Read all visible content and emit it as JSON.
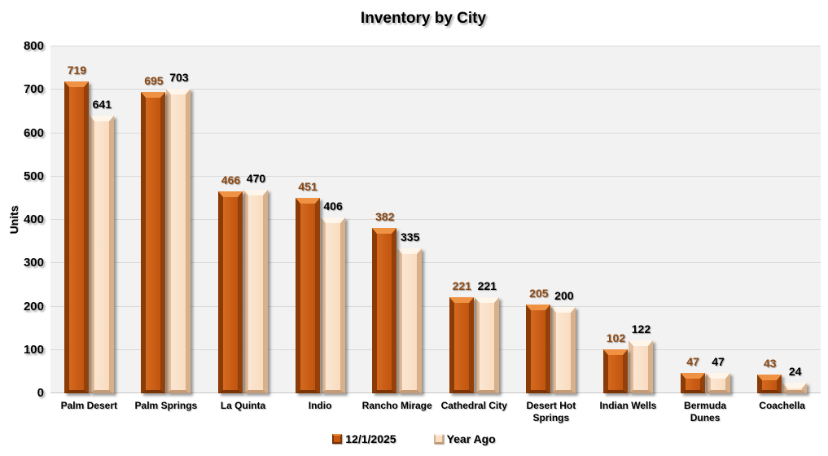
{
  "title": "Inventory by City",
  "y_axis": {
    "label": "Units",
    "ticks": [
      0,
      100,
      200,
      300,
      400,
      500,
      600,
      700,
      800
    ],
    "max": 800
  },
  "chart_data": {
    "type": "bar",
    "title": "Inventory by City",
    "xlabel": "",
    "ylabel": "Units",
    "ylim": [
      0,
      800
    ],
    "grid": true,
    "legend_position": "bottom",
    "categories": [
      "Palm Desert",
      "Palm Springs",
      "La Quinta",
      "Indio",
      "Rancho Mirage",
      "Cathedral City",
      "Desert Hot Springs",
      "Indian Wells",
      "Bermuda Dunes",
      "Coachella"
    ],
    "series": [
      {
        "name": "12/1/2025",
        "color": "#C4580F",
        "label_color": "#8E4A15",
        "values": [
          719,
          695,
          466,
          451,
          382,
          221,
          205,
          102,
          47,
          43
        ]
      },
      {
        "name": "Year Ago",
        "color": "#FBE3CC",
        "label_color": "#000000",
        "values": [
          641,
          703,
          470,
          406,
          335,
          221,
          200,
          122,
          47,
          24
        ]
      }
    ]
  },
  "legend": {
    "items": [
      {
        "label": "12/1/2025",
        "swatch": "dark-orange"
      },
      {
        "label": "Year Ago",
        "swatch": "light-peach"
      }
    ]
  }
}
